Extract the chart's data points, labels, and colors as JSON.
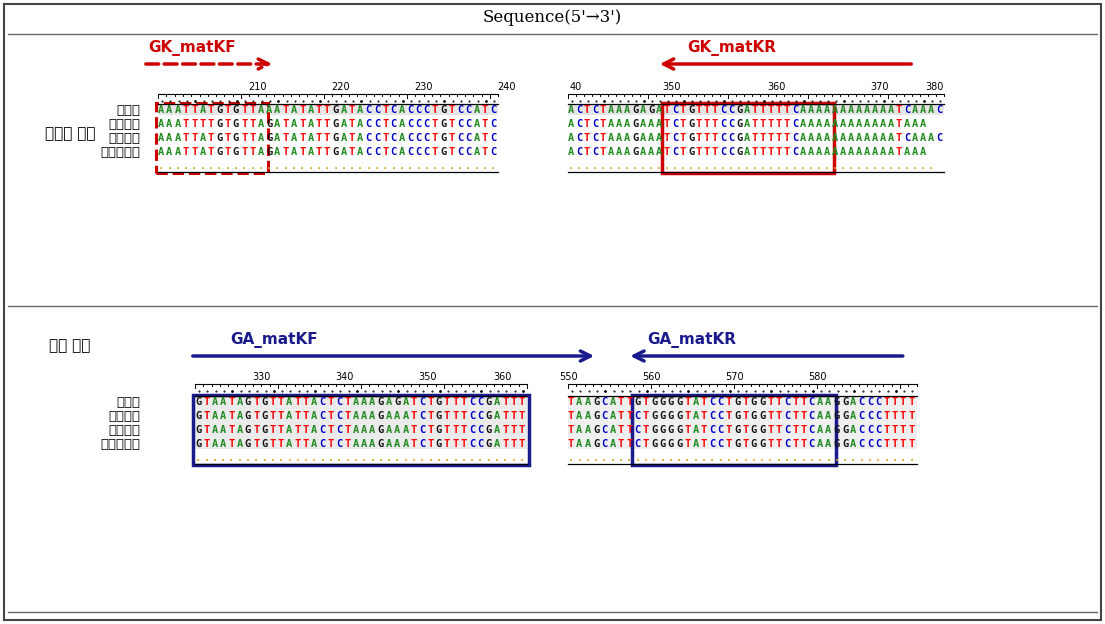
{
  "title": "Sequence(5'→3')",
  "top_label": "종대황 특이",
  "bottom_label": "대황 특이",
  "row_labels": [
    "종대황",
    "장엽대황",
    "약용대황",
    "탕구트대황"
  ],
  "top_primer_left": "GK_matKF",
  "top_primer_right": "GK_matKR",
  "bottom_primer_left": "GA_matKF",
  "bottom_primer_right": "GA_matKR",
  "primer_color_top": "#cc0000",
  "primer_color_bottom": "#1a1a8c",
  "top_left_seqs": [
    "AAATTATGTGTTAAATATATTGATACCTCACCCTGTCCATC",
    "AAATTTTGTGTTAGATATATTGATACCTCACCCTGTCCATC",
    "AAATTATGTGTTAGATATATTGATACCTCACCCTGTCCATC",
    "AAATTATGTGTTAGATATATTGATACCTCACCCTGTCCATC",
    "........................................."
  ],
  "top_right_seqs": [
    "ACTCTAAAGAGATCTGTTTCCGATTTTTCAAAAAAAAAAAATCAAAC",
    "ACTCTAAAGAAATCTGTTTCCGATTTTTCAAAAAAAAAAAATAAA",
    "ACTCTAAAGAAATCTGTTTCCGATTTTTCAAAAAAAAAAAATCAAAC",
    "ACTCTAAAGAAATCTGTTTCCGATTTTTCAAAAAAAAAAAATAAA",
    ".............................................."
  ],
  "bottom_left_seqs": [
    "GTAATAGTGTTATTACTCTAAAGAGATCTGTTTCCGATTT",
    "GTAATAGTGTTATTACTCTAAAGAAATCTGTTTCCGATTT",
    "GTAATAGTGTTATTACTCTAAAGAAATCTGTTTCCGATTT",
    "GTAATAGTGTTATTACTCTAAAGAAATCTGTTTCCGATTT",
    "........................................"
  ],
  "bottom_right_seqs": [
    "TAAGCATTGTGGGGTATCCTGTGGTTCTTCAAGGACCCTTTT",
    "TAAGCATTCTGGGGTATCCTGTGGTTCTTCAAGGACCCTTTT",
    "TAAGCATTCTGGGGTATCCTGTGGTTCTTCAAGGACCCTTTT",
    "TAAGCATTCTGGGGTATCCTGTGGTTCTTCAAGGACCCTTTT",
    ".........................................."
  ],
  "dna_colors": {
    "A": "#228B22",
    "T": "#FF0000",
    "G": "#111111",
    "C": "#0000CC",
    ".": "#DAA520"
  },
  "bg_color": "#ffffff"
}
